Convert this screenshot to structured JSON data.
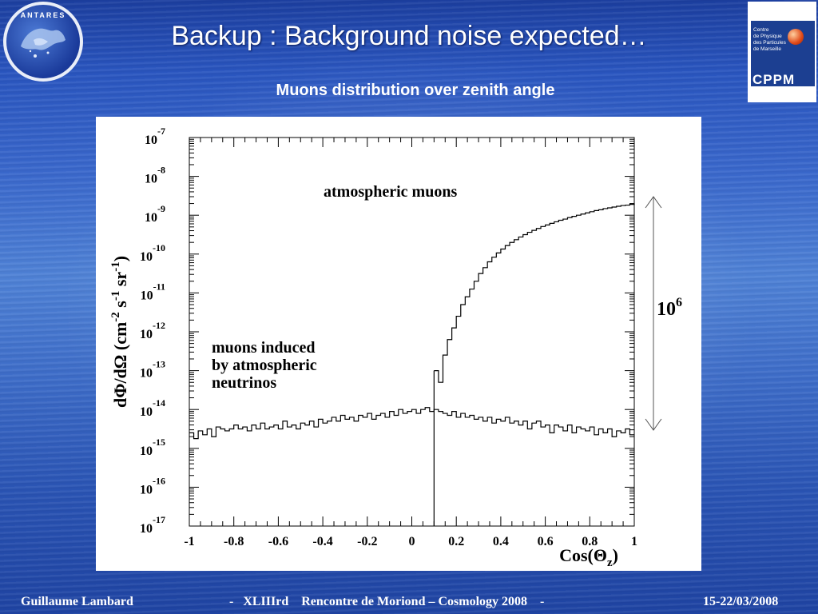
{
  "slide": {
    "title": "Backup : Background noise expected…",
    "subtitle": "Muons distribution over zenith angle"
  },
  "logos": {
    "left_text": "ANTARES",
    "right_lines": [
      "Centre",
      "de Physique",
      "des Particules",
      "de Marseille"
    ],
    "right_brand": "CPPM",
    "right_color": "#1c3f91",
    "right_dot_color": "#e04a18"
  },
  "footer": {
    "author": "Guillaume Lambard",
    "event": "-   XLIIIrd    Rencontre de Moriond – Cosmology 2008    -",
    "dates": "15-22/03/2008"
  },
  "chart_data": {
    "type": "line",
    "title": "",
    "xlabel": "Cos(Θ",
    "xlabel_sub": "z",
    "xlabel_close": ")",
    "ylabel": "dΦ/dΩ (cm",
    "ylabel_exp1": "-2",
    "ylabel_mid": " s",
    "ylabel_exp2": "-1",
    "ylabel_mid2": " sr",
    "ylabel_exp3": "-1",
    "ylabel_close": ")",
    "xlim": [
      -1,
      1
    ],
    "ylim_log10": [
      -17,
      -7
    ],
    "y_scale": "log",
    "grid": false,
    "x_ticks": [
      "-1",
      "-0.8",
      "-0.6",
      "-0.4",
      "-0.2",
      "0",
      "0.2",
      "0.4",
      "0.6",
      "0.8",
      "1"
    ],
    "x_tick_values": [
      -1,
      -0.8,
      -0.6,
      -0.4,
      -0.2,
      0,
      0.2,
      0.4,
      0.6,
      0.8,
      1
    ],
    "y_tick_exponents": [
      "-7",
      "-8",
      "-9",
      "-10",
      "-11",
      "-12",
      "-13",
      "-14",
      "-15",
      "-16",
      "-17"
    ],
    "y_tick_base": "10",
    "series": [
      {
        "name": "atmospheric muons",
        "x": [
          0.1,
          0.12,
          0.14,
          0.16,
          0.18,
          0.2,
          0.22,
          0.24,
          0.26,
          0.28,
          0.3,
          0.32,
          0.34,
          0.36,
          0.38,
          0.4,
          0.42,
          0.44,
          0.46,
          0.48,
          0.5,
          0.52,
          0.54,
          0.56,
          0.58,
          0.6,
          0.62,
          0.64,
          0.66,
          0.68,
          0.7,
          0.72,
          0.74,
          0.76,
          0.78,
          0.8,
          0.82,
          0.84,
          0.86,
          0.88,
          0.9,
          0.92,
          0.94,
          0.96,
          0.98,
          1.0
        ],
        "log10_y": [
          -13.0,
          -13.3,
          -12.6,
          -12.2,
          -11.9,
          -11.6,
          -11.3,
          -11.1,
          -10.9,
          -10.7,
          -10.5,
          -10.35,
          -10.2,
          -10.08,
          -9.97,
          -9.87,
          -9.78,
          -9.7,
          -9.63,
          -9.56,
          -9.5,
          -9.44,
          -9.39,
          -9.34,
          -9.29,
          -9.25,
          -9.21,
          -9.17,
          -9.13,
          -9.1,
          -9.06,
          -9.03,
          -9.0,
          -8.97,
          -8.94,
          -8.91,
          -8.88,
          -8.86,
          -8.83,
          -8.81,
          -8.79,
          -8.77,
          -8.75,
          -8.74,
          -8.72,
          -8.7
        ]
      },
      {
        "name": "muons induced by atmospheric neutrinos",
        "x": [
          -1.0,
          -0.98,
          -0.96,
          -0.94,
          -0.92,
          -0.9,
          -0.88,
          -0.86,
          -0.84,
          -0.82,
          -0.8,
          -0.78,
          -0.76,
          -0.74,
          -0.72,
          -0.7,
          -0.68,
          -0.66,
          -0.64,
          -0.62,
          -0.6,
          -0.58,
          -0.56,
          -0.54,
          -0.52,
          -0.5,
          -0.48,
          -0.46,
          -0.44,
          -0.42,
          -0.4,
          -0.38,
          -0.36,
          -0.34,
          -0.32,
          -0.3,
          -0.28,
          -0.26,
          -0.24,
          -0.22,
          -0.2,
          -0.18,
          -0.16,
          -0.14,
          -0.12,
          -0.1,
          -0.08,
          -0.06,
          -0.04,
          -0.02,
          0.0,
          0.02,
          0.04,
          0.06,
          0.08,
          0.1,
          0.12,
          0.14,
          0.16,
          0.18,
          0.2,
          0.22,
          0.24,
          0.26,
          0.28,
          0.3,
          0.32,
          0.34,
          0.36,
          0.38,
          0.4,
          0.42,
          0.44,
          0.46,
          0.48,
          0.5,
          0.52,
          0.54,
          0.56,
          0.58,
          0.6,
          0.62,
          0.64,
          0.66,
          0.68,
          0.7,
          0.72,
          0.74,
          0.76,
          0.78,
          0.8,
          0.82,
          0.84,
          0.86,
          0.88,
          0.9,
          0.92,
          0.94,
          0.96,
          0.98
        ],
        "log10_y": [
          -14.6,
          -14.75,
          -14.55,
          -14.65,
          -14.5,
          -14.7,
          -14.45,
          -14.5,
          -14.55,
          -14.5,
          -14.4,
          -14.5,
          -14.45,
          -14.55,
          -14.4,
          -14.5,
          -14.35,
          -14.5,
          -14.45,
          -14.4,
          -14.5,
          -14.3,
          -14.45,
          -14.4,
          -14.5,
          -14.35,
          -14.4,
          -14.3,
          -14.45,
          -14.25,
          -14.35,
          -14.3,
          -14.2,
          -14.3,
          -14.15,
          -14.25,
          -14.2,
          -14.3,
          -14.15,
          -14.2,
          -14.1,
          -14.25,
          -14.15,
          -14.1,
          -14.2,
          -14.05,
          -14.15,
          -14.0,
          -14.1,
          -14.05,
          -14.0,
          -14.1,
          -14.0,
          -13.95,
          -14.05,
          -14.0,
          -14.05,
          -14.1,
          -14.15,
          -14.05,
          -14.2,
          -14.1,
          -14.2,
          -14.15,
          -14.25,
          -14.2,
          -14.3,
          -14.2,
          -14.35,
          -14.25,
          -14.3,
          -14.2,
          -14.35,
          -14.3,
          -14.4,
          -14.3,
          -14.5,
          -14.35,
          -14.3,
          -14.45,
          -14.4,
          -14.6,
          -14.4,
          -14.45,
          -14.55,
          -14.4,
          -14.6,
          -14.45,
          -14.5,
          -14.55,
          -14.45,
          -14.65,
          -14.5,
          -14.6,
          -14.5,
          -14.7,
          -14.55,
          -14.6,
          -14.5,
          -14.65
        ]
      }
    ],
    "annotations": {
      "muons_label": "atmospheric muons",
      "neutrino_label_1": "muons induced",
      "neutrino_label_2": "by atmospheric",
      "neutrino_label_3": "neutrinos",
      "ratio_base": "10",
      "ratio_exp": "6"
    }
  }
}
